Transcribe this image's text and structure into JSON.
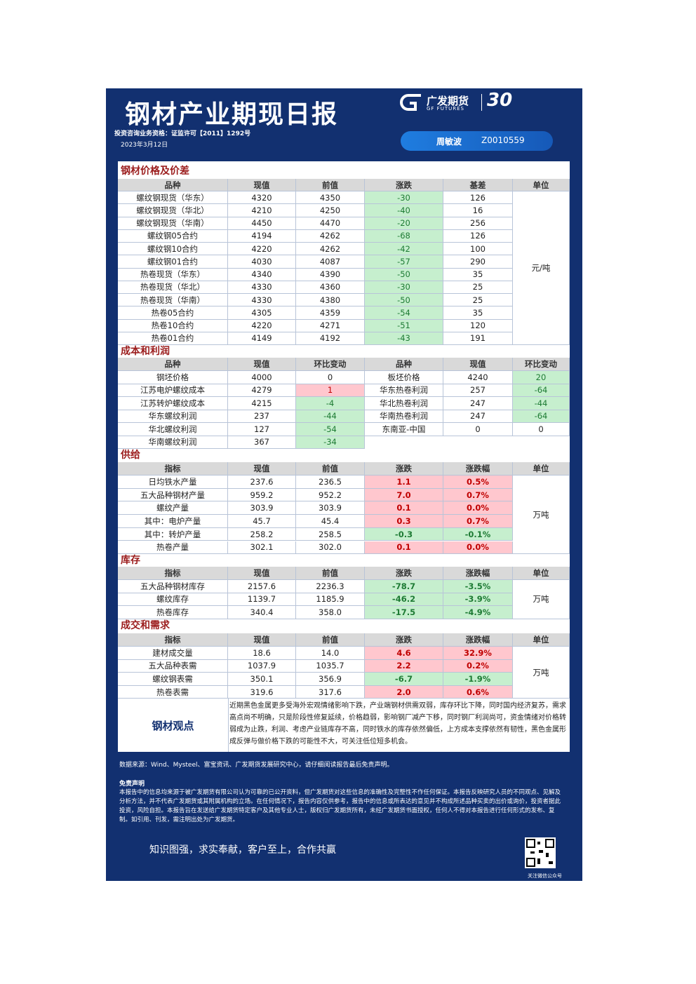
{
  "header": {
    "title": "钢材产业期现日报",
    "license": "投资咨询业务资格：证监许可【2011】1292号",
    "date": "2023年3月12日",
    "logo_cn": "广发期货",
    "logo_en": "GF FUTURES",
    "logo_years": "30",
    "analyst": "周敏波",
    "analyst_id": "Z0010559"
  },
  "sections": [
    {
      "title": "钢材价格及价差",
      "columns": [
        "品种",
        "现值",
        "前值",
        "涨跌",
        "基差",
        "单位"
      ],
      "unit": "元/吨",
      "rows": [
        [
          "螺纹钢现货（华东）",
          "4320",
          "4350",
          "-30",
          "126"
        ],
        [
          "螺纹钢现货（华北）",
          "4210",
          "4250",
          "-40",
          "16"
        ],
        [
          "螺纹钢现货（华南）",
          "4450",
          "4470",
          "-20",
          "256"
        ],
        [
          "螺纹钢05合约",
          "4194",
          "4262",
          "-68",
          "126"
        ],
        [
          "螺纹钢10合约",
          "4220",
          "4262",
          "-42",
          "100"
        ],
        [
          "螺纹钢01合约",
          "4030",
          "4087",
          "-57",
          "290"
        ],
        [
          "热卷现货（华东）",
          "4340",
          "4390",
          "-50",
          "35"
        ],
        [
          "热卷现货（华北）",
          "4330",
          "4360",
          "-30",
          "25"
        ],
        [
          "热卷现货（华南）",
          "4330",
          "4380",
          "-50",
          "25"
        ],
        [
          "热卷05合约",
          "4305",
          "4359",
          "-54",
          "35"
        ],
        [
          "热卷10合约",
          "4220",
          "4271",
          "-51",
          "120"
        ],
        [
          "热卷01合约",
          "4149",
          "4192",
          "-43",
          "191"
        ]
      ]
    },
    {
      "title": "成本和利润",
      "columns": [
        "品种",
        "现值",
        "环比变动",
        "品种",
        "现值",
        "环比变动"
      ],
      "rows": [
        [
          "钢坯价格",
          "4000",
          "0",
          "板坯价格",
          "4240",
          "20"
        ],
        [
          "江苏电炉螺纹成本",
          "4279",
          "1",
          "华东热卷利润",
          "257",
          "-64"
        ],
        [
          "江苏转炉螺纹成本",
          "4215",
          "-4",
          "华北热卷利润",
          "247",
          "-44"
        ],
        [
          "华东螺纹利润",
          "237",
          "-44",
          "华南热卷利润",
          "247",
          "-64"
        ],
        [
          "华北螺纹利润",
          "127",
          "-54",
          "东南亚-中国",
          "0",
          "0"
        ],
        [
          "华南螺纹利润",
          "367",
          "-34"
        ]
      ]
    },
    {
      "title": "供给",
      "columns": [
        "指标",
        "现值",
        "前值",
        "涨跌",
        "涨跌幅",
        "单位"
      ],
      "unit": "万吨",
      "rows": [
        [
          "日均铁水产量",
          "237.6",
          "236.5",
          "1.1",
          "0.5%"
        ],
        [
          "五大品种钢材产量",
          "959.2",
          "952.2",
          "7.0",
          "0.7%"
        ],
        [
          "螺纹产量",
          "303.9",
          "303.9",
          "0.1",
          "0.0%"
        ],
        [
          "其中：电炉产量",
          "45.7",
          "45.4",
          "0.3",
          "0.7%"
        ],
        [
          "其中：转炉产量",
          "258.2",
          "258.5",
          "-0.3",
          "-0.1%"
        ],
        [
          "热卷产量",
          "302.1",
          "302.0",
          "0.1",
          "0.0%"
        ]
      ]
    },
    {
      "title": "库存",
      "columns": [
        "指标",
        "现值",
        "前值",
        "涨跌",
        "涨跌幅",
        "单位"
      ],
      "unit": "万吨",
      "rows": [
        [
          "五大品种钢材库存",
          "2157.6",
          "2236.3",
          "-78.7",
          "-3.5%"
        ],
        [
          "螺纹库存",
          "1139.7",
          "1185.9",
          "-46.2",
          "-3.9%"
        ],
        [
          "热卷库存",
          "340.4",
          "358.0",
          "-17.5",
          "-4.9%"
        ]
      ]
    },
    {
      "title": "成交和需求",
      "columns": [
        "指标",
        "现值",
        "前值",
        "涨跌",
        "涨跌幅",
        "单位"
      ],
      "unit": "万吨",
      "rows": [
        [
          "建材成交量",
          "18.6",
          "14.0",
          "4.6",
          "32.9%"
        ],
        [
          "五大品种表需",
          "1037.9",
          "1035.7",
          "2.2",
          "0.2%"
        ],
        [
          "螺纹钢表需",
          "350.1",
          "356.9",
          "-6.7",
          "-1.9%"
        ],
        [
          "热卷表需",
          "319.6",
          "317.6",
          "2.0",
          "0.6%"
        ]
      ]
    }
  ],
  "viewpoint": {
    "label": "钢材观点",
    "text": "近期黑色金属更多受海外宏观情绪影响下跌，产业端钢材供需双弱，库存环比下降，同时国内经济复苏，需求高点尚不明确，只是阶段性修复延续，价格趋弱，影响钢厂减产下移，同时钢厂利润尚可，资金情绪对价格转弱成为止跌，利润、考虑产业链库存不高，同时铁水的库存依然偏低，上方成本支撑依然有韧性，黑色金属形成反弹与做价格下跌的可能性不大，可关注低位短多机会。"
  },
  "footer": {
    "source": "数据来源：Wind、Mysteel、富宝资讯、广发期货发展研究中心，请仔细阅读报告最后免责声明。",
    "disclaimer_title": "免责声明",
    "disclaimer": "本报告中的信息均来源于被广发期货有限公司认为可靠的已公开资料，但广发期货对这些信息的准确性及完整性不作任何保证。本报告反映研究人员的不同观点、见解及分析方法，并不代表广发期货或其附属机构的立场。在任何情况下，报告内容仅供参考，报告中的信息或所表达的意见并不构成所述品种买卖的出价或询价，投资者据此投资，风险自担。本报告旨在发送给广发期货特定客户及其他专业人士，版权归广发期货所有，未经广发期货书面授权，任何人不得对本报告进行任何形式的发布、复制。如引用、刊发，需注明出处为广发期货。",
    "slogan": "知识图强，求实奉献，客户至上，合作共赢",
    "qr_caption": "关注微信公众号"
  }
}
